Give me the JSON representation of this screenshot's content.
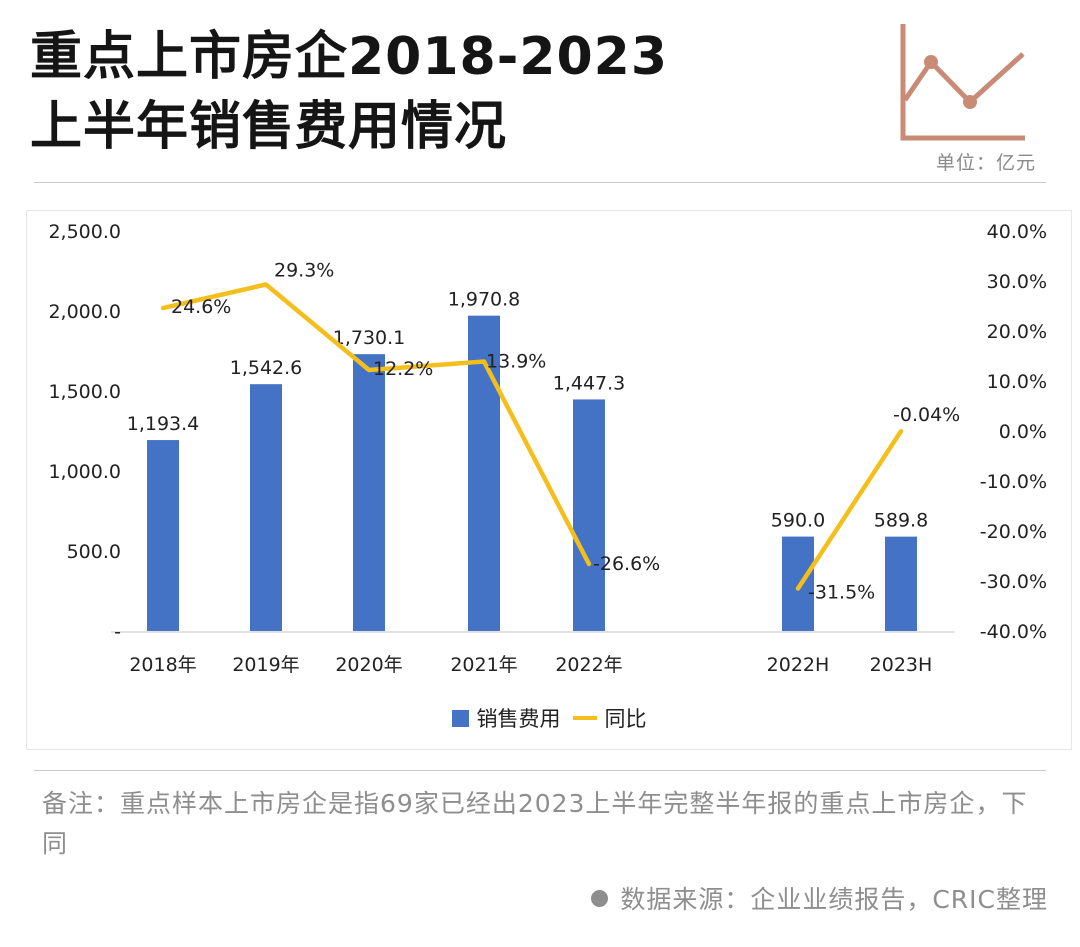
{
  "header": {
    "title_line1": "重点上市房企2018-2023",
    "title_line2": "上半年销售费用情况",
    "unit": "单位：亿元"
  },
  "colors": {
    "bar": "#4472c4",
    "line": "#f4bf1c",
    "logo": "#c98b76"
  },
  "chart_data": {
    "type": "bar",
    "categories": [
      "2018年",
      "2019年",
      "2020年",
      "2021年",
      "2022年",
      "2022H",
      "2023H"
    ],
    "series": [
      {
        "name": "销售费用",
        "type": "bar",
        "axis": "left",
        "values": [
          1193.4,
          1542.6,
          1730.1,
          1970.8,
          1447.3,
          590.0,
          589.8
        ],
        "labels": [
          "1,193.4",
          "1,542.6",
          "1,730.1",
          "1,970.8",
          "1,447.3",
          "590.0",
          "589.8"
        ]
      },
      {
        "name": "同比",
        "type": "line",
        "axis": "right",
        "values": [
          24.6,
          29.3,
          12.2,
          13.9,
          -26.6,
          -31.5,
          -0.04
        ],
        "labels": [
          "24.6%",
          "29.3%",
          "12.2%",
          "13.9%",
          "-26.6%",
          "-31.5%",
          "-0.04%"
        ],
        "segments": [
          [
            0,
            4
          ],
          [
            5,
            6
          ]
        ]
      }
    ],
    "left_axis": {
      "ylim": [
        0,
        2500
      ],
      "ticks": [
        0,
        500,
        1000,
        1500,
        2000,
        2500
      ],
      "tick_labels": [
        "-",
        "500.0",
        "1,000.0",
        "1,500.0",
        "2,000.0",
        "2,500.0"
      ]
    },
    "right_axis": {
      "ylim": [
        -40,
        40
      ],
      "ticks": [
        -40,
        -30,
        -20,
        -10,
        0,
        10,
        20,
        30,
        40
      ],
      "tick_labels": [
        "-40.0%",
        "-30.0%",
        "-20.0%",
        "-10.0%",
        "0.0%",
        "10.0%",
        "20.0%",
        "30.0%",
        "40.0%"
      ]
    },
    "legend": [
      "销售费用",
      "同比"
    ],
    "legend_position": "bottom",
    "grid": false
  },
  "footer": {
    "note": "备注：重点样本上市房企是指69家已经出2023上半年完整半年报的重点上市房企，下同",
    "source": "数据来源：企业业绩报告，CRIC整理"
  }
}
